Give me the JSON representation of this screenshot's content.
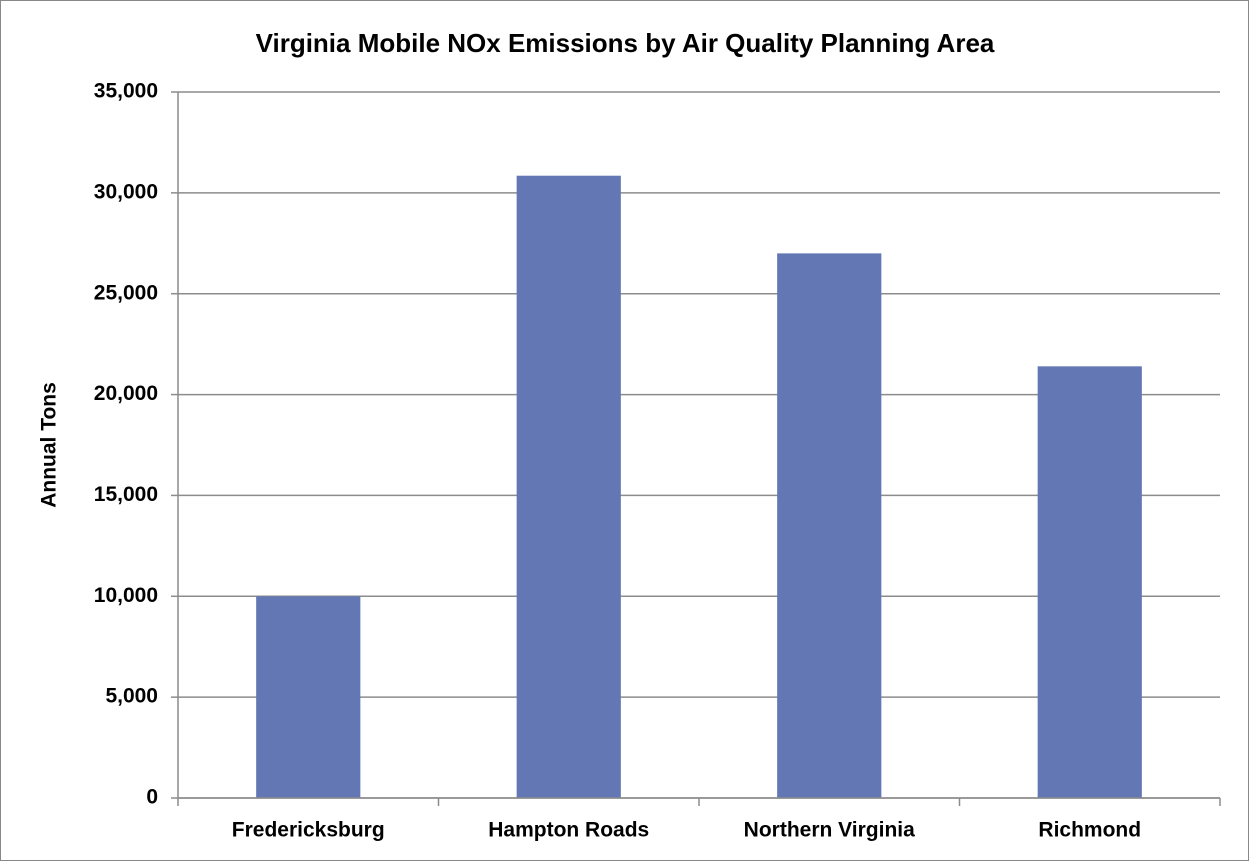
{
  "chart_data": {
    "type": "bar",
    "title": "Virginia Mobile NOx Emissions by Air Quality Planning Area",
    "y_label": "Annual Tons",
    "categories": [
      "Fredericksburg",
      "Hampton Roads",
      "Northern Virginia",
      "Richmond"
    ],
    "values": [
      10000,
      30850,
      27000,
      21400
    ],
    "color": "#6277b4",
    "ylim": [
      0,
      35000
    ],
    "yticks": [
      0,
      {
        "value": 5000,
        "label": "5,000"
      },
      {
        "value": 10000,
        "label": "10,000"
      },
      {
        "value": 15000,
        "label": "15,000"
      },
      {
        "value": 20000,
        "label": "20,000"
      },
      {
        "value": 25000,
        "label": "25,000"
      },
      {
        "value": 30000,
        "label": "30,000"
      },
      {
        "value": 35000,
        "label": "35,000"
      }
    ],
    "grid": true
  }
}
